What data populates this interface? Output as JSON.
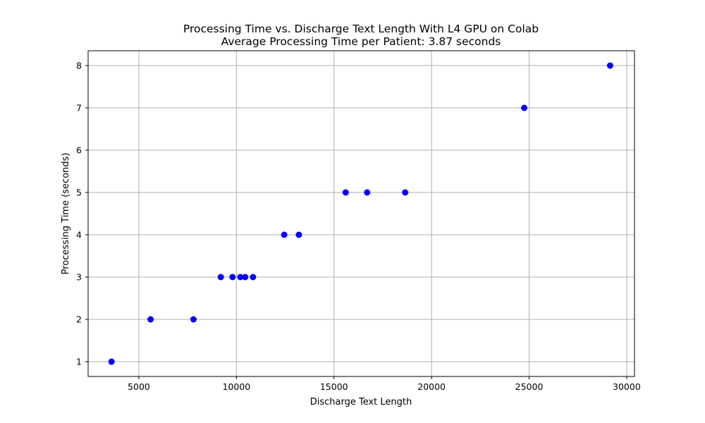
{
  "chart_data": {
    "type": "scatter",
    "title": "Processing Time vs. Discharge Text Length With L4 GPU on Colab",
    "subtitle": "Average Processing Time per Patient: 3.87 seconds",
    "xlabel": "Discharge Text Length",
    "ylabel": "Processing Time (seconds)",
    "xlim": [
      2400,
      30400
    ],
    "ylim": [
      0.65,
      8.35
    ],
    "xticks": [
      5000,
      10000,
      15000,
      20000,
      25000,
      30000
    ],
    "yticks": [
      1,
      2,
      3,
      4,
      5,
      6,
      7,
      8
    ],
    "grid": true,
    "marker_color": "#0000ff",
    "points": [
      {
        "x": 3600,
        "y": 1
      },
      {
        "x": 5600,
        "y": 2
      },
      {
        "x": 7800,
        "y": 2
      },
      {
        "x": 9200,
        "y": 3
      },
      {
        "x": 9800,
        "y": 3
      },
      {
        "x": 10200,
        "y": 3
      },
      {
        "x": 10450,
        "y": 3
      },
      {
        "x": 10850,
        "y": 3
      },
      {
        "x": 12450,
        "y": 4
      },
      {
        "x": 13200,
        "y": 4
      },
      {
        "x": 15600,
        "y": 5
      },
      {
        "x": 16700,
        "y": 5
      },
      {
        "x": 18650,
        "y": 5
      },
      {
        "x": 24750,
        "y": 7
      },
      {
        "x": 29150,
        "y": 8
      }
    ]
  }
}
